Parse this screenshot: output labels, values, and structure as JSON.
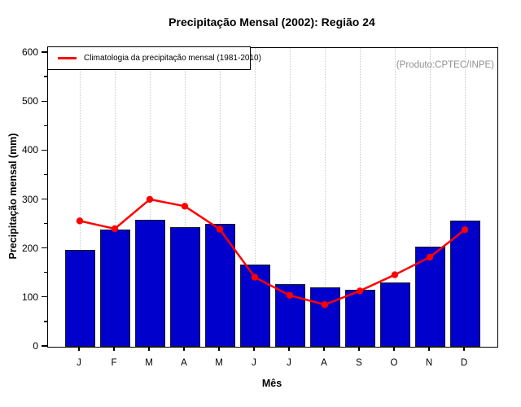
{
  "title": "Precipitação Mensal (2002): Região 24",
  "annotation": "(Produto:CPTEC/INPE)",
  "legend": {
    "label": "Climatologia da precipitação mensal (1981-2010)"
  },
  "axes": {
    "y_label": "Precipitação mensal (mm)",
    "x_label": "Mês",
    "y_major_ticks": [
      0,
      100,
      200,
      300,
      400,
      500,
      600
    ],
    "y_minor_ticks": [
      50,
      150,
      250,
      350,
      450,
      550
    ]
  },
  "colors": {
    "bar_fill": "#0000CD",
    "bar_border": "#1c1c1c",
    "climatology_line": "#ff0000",
    "grid": "#c9c9c9",
    "annotation_text": "#909090",
    "frame": "#000000"
  },
  "chart_data": {
    "type": "bar",
    "title": "Precipitação Mensal (2002): Região 24",
    "xlabel": "Mês",
    "ylabel": "Precipitação mensal (mm)",
    "ylim": [
      0,
      600
    ],
    "grid": "vertical-dotted",
    "legend_position": "top-left",
    "categories": [
      "J",
      "F",
      "M",
      "A",
      "M",
      "J",
      "J",
      "A",
      "S",
      "O",
      "N",
      "D"
    ],
    "series": [
      {
        "name": "Precipitação mensal 2002",
        "type": "bar",
        "color": "#0000CD",
        "values": [
          197,
          240,
          259,
          244,
          251,
          168,
          128,
          121,
          116,
          132,
          204,
          257
        ]
      },
      {
        "name": "Climatologia da precipitação mensal (1981-2010)",
        "type": "line",
        "color": "#ff0000",
        "values": [
          257,
          241,
          301,
          287,
          240,
          142,
          105,
          86,
          114,
          147,
          183,
          239
        ]
      }
    ]
  }
}
